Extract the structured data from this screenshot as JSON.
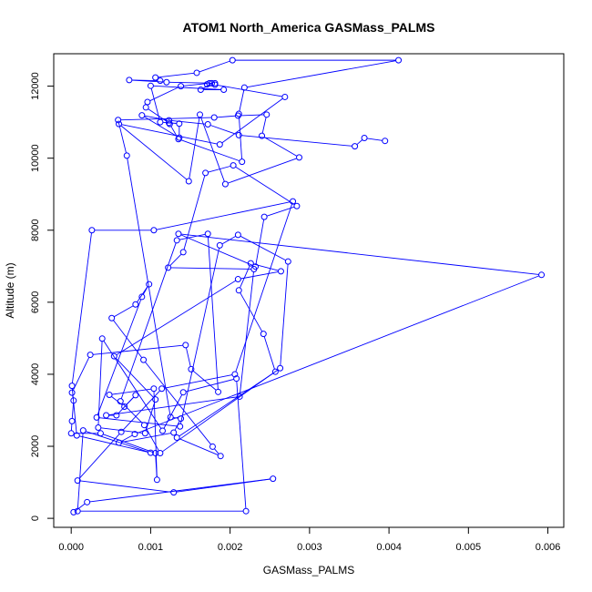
{
  "chart_data": {
    "type": "scatter",
    "title": "ATOM1 North_America GASMass_PALMS",
    "xlabel": "GASMass_PALMS",
    "ylabel": "Altitude (m)",
    "xlim": [
      -0.00022,
      0.0062
    ],
    "ylim": [
      -250,
      12900
    ],
    "x_ticks": [
      0.0,
      0.001,
      0.002,
      0.003,
      0.004,
      0.005,
      0.006
    ],
    "x_tick_labels": [
      "0.000",
      "0.001",
      "0.002",
      "0.003",
      "0.004",
      "0.005",
      "0.006"
    ],
    "y_ticks": [
      0,
      2000,
      4000,
      6000,
      8000,
      10000,
      12000
    ],
    "y_tick_labels": [
      "0",
      "2000",
      "4000",
      "6000",
      "8000",
      "10000",
      "12000"
    ],
    "series": [
      {
        "color": "#0000ff",
        "connected": true,
        "marker": "open-circle",
        "x": [
          3e-05,
          0.0002,
          0.00254,
          0.00129,
          8e-05,
          0.00063,
          0.00114,
          0.00206,
          0.00279,
          0.00104,
          0.00026,
          1e-05,
          7e-05,
          0.001,
          0.00015,
          8e-05,
          0.0022,
          0.00208,
          0.00141,
          0.00115,
          0.00039,
          0.00034,
          0.00093,
          0.00106,
          0.00054,
          0.0021,
          0.00264,
          0.00226,
          0.00211,
          0.00242,
          0.00257,
          0.00133,
          0.00188,
          0.00178,
          0.00091,
          0.00051,
          0.00081,
          0.00098,
          0.00089,
          0.00032,
          0.00137,
          0.00187,
          0.0021,
          0.00273,
          0.00263,
          0.00112,
          0.00092,
          0.00062,
          0.00133,
          0.00172,
          0.00185,
          0.00151,
          0.00144,
          0.00024,
          1e-05,
          3e-05,
          1e-05,
          0.0,
          0.00037,
          0.00106,
          0.00108,
          0.00104,
          0.00048,
          0.00067,
          0.00081,
          0.00057,
          0.00044,
          0.00212,
          0.0023,
          0.00122,
          0.00141,
          0.00169,
          0.00204,
          0.00284,
          0.00243,
          0.00232,
          0.00135,
          0.00592,
          0.0008,
          0.0006,
          0.00129,
          0.00138,
          0.00125,
          0.0007,
          0.00059,
          0.0018,
          0.0021,
          0.00246,
          0.0024,
          0.00287,
          0.00194,
          0.00162,
          0.00148,
          0.0006,
          0.00187,
          0.00269,
          0.00181,
          0.00174,
          0.00138,
          0.00096,
          0.00094,
          0.00123,
          0.00124,
          0.00135,
          0.00215,
          0.00211,
          0.00218,
          0.00412,
          0.00203,
          0.00158,
          0.00106,
          0.00112,
          0.00073,
          0.0012,
          0.00181,
          0.00171,
          0.00177,
          0.00163,
          0.00192,
          0.001,
          0.00112,
          0.00136,
          0.00136,
          0.00089,
          0.00123,
          0.00172,
          0.00211,
          0.00357,
          0.00369,
          0.00395
        ],
        "y": [
          170,
          450,
          1100,
          720,
          1050,
          2400,
          3600,
          4000,
          8800,
          8000,
          8000,
          3680,
          2300,
          1820,
          2440,
          200,
          200,
          3880,
          3500,
          2430,
          4990,
          2520,
          2360,
          3300,
          4500,
          6640,
          6860,
          7080,
          6330,
          5120,
          4070,
          2240,
          1730,
          1990,
          4400,
          5560,
          5940,
          6500,
          6150,
          2800,
          2550,
          7580,
          7870,
          7130,
          4170,
          1810,
          2590,
          3250,
          7720,
          7900,
          3510,
          4140,
          4810,
          4540,
          3490,
          3270,
          2700,
          2360,
          2360,
          1810,
          1070,
          3600,
          3430,
          3100,
          3420,
          2860,
          2860,
          3380,
          6920,
          6960,
          7390,
          9590,
          9800,
          8670,
          8370,
          6990,
          7900,
          6760,
          2340,
          2100,
          2380,
          2770,
          2810,
          10070,
          11060,
          11130,
          11180,
          11210,
          10620,
          10020,
          9280,
          11210,
          9360,
          10950,
          10380,
          11700,
          12040,
          12080,
          12000,
          11560,
          11410,
          10980,
          10950,
          10530,
          9900,
          11230,
          11960,
          12720,
          12720,
          12370,
          12240,
          12150,
          12170,
          12110,
          12080,
          12050,
          12080,
          11900,
          11900,
          12010,
          11000,
          10960,
          10570,
          11190,
          11050,
          10940,
          10640,
          10330,
          10560,
          10480
        ]
      }
    ]
  }
}
